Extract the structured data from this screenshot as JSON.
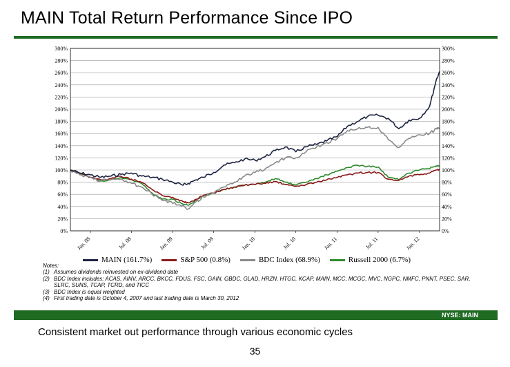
{
  "page": {
    "title": "MAIN Total Return Performance Since IPO",
    "ticker_bar": "NYSE: MAIN",
    "tagline": "Consistent market out performance through various economic cycles",
    "page_number": "35"
  },
  "notes": {
    "header": "Notes:",
    "items": [
      {
        "num": "(1)",
        "text": "Assumes dividends reinvested on ex-dividend date"
      },
      {
        "num": "(2)",
        "text": "BDC Index includes: ACAS, AINV, ARCC, BKCC, FDUS, FSC, GAIN, GBDC, GLAD, HRZN, HTGC, KCAP, MAIN, MCC, MCGC, MVC, NGPC, NMFC, PNNT, PSEC, SAR, SLRC, SUNS, TCAP, TCRD, and TICC"
      },
      {
        "num": "(3)",
        "text": "BDC Index is equal weighted"
      },
      {
        "num": "(4)",
        "text": "First trading date is October 4, 2007 and last trading date is March 30, 2012"
      }
    ]
  },
  "chart_data": {
    "type": "line",
    "title": "",
    "xlabel": "",
    "ylabel": "",
    "x_type": "date",
    "xlim": [
      "2007-10-04",
      "2012-03-30"
    ],
    "ylim": [
      0,
      300
    ],
    "y_ticks": [
      0,
      20,
      40,
      60,
      80,
      100,
      120,
      140,
      160,
      180,
      200,
      220,
      240,
      260,
      280,
      300
    ],
    "y_tick_labels": [
      "0%",
      "20%",
      "40%",
      "60%",
      "80%",
      "100%",
      "120%",
      "140%",
      "160%",
      "180%",
      "200%",
      "220%",
      "240%",
      "260%",
      "280%",
      "300%"
    ],
    "x_ticks": [
      "2008-01-01",
      "2008-07-01",
      "2009-01-01",
      "2009-07-01",
      "2010-01-01",
      "2010-07-01",
      "2011-01-01",
      "2011-07-01",
      "2012-01-01"
    ],
    "x_tick_labels": [
      "Jan. 08",
      "Jul. 08",
      "Jan. 09",
      "Jul. 09",
      "Jan. 10",
      "Jul. 10",
      "Jan. 11",
      "Jul. 11",
      "Jan. 12"
    ],
    "grid": true,
    "legend_position": "bottom",
    "x": [
      "2007-10-04",
      "2007-11-15",
      "2008-01-01",
      "2008-02-15",
      "2008-04-01",
      "2008-05-15",
      "2008-07-01",
      "2008-08-15",
      "2008-10-01",
      "2008-11-15",
      "2009-01-01",
      "2009-02-15",
      "2009-03-10",
      "2009-04-15",
      "2009-05-15",
      "2009-07-01",
      "2009-08-15",
      "2009-10-01",
      "2009-11-15",
      "2010-01-01",
      "2010-02-15",
      "2010-04-01",
      "2010-05-15",
      "2010-07-01",
      "2010-08-15",
      "2010-10-01",
      "2010-11-15",
      "2011-01-01",
      "2011-02-15",
      "2011-04-01",
      "2011-05-15",
      "2011-07-01",
      "2011-08-15",
      "2011-10-01",
      "2011-11-15",
      "2012-01-01",
      "2012-02-15",
      "2012-03-15",
      "2012-03-30"
    ],
    "series": [
      {
        "name": "MAIN (161.7%)",
        "color": "#1b2340",
        "values": [
          100,
          95,
          92,
          88,
          90,
          93,
          95,
          90,
          88,
          85,
          80,
          75,
          78,
          84,
          88,
          96,
          108,
          112,
          118,
          116,
          122,
          132,
          138,
          130,
          138,
          142,
          148,
          155,
          172,
          180,
          188,
          190,
          185,
          168,
          182,
          185,
          205,
          248,
          262
        ]
      },
      {
        "name": "S&P 500 (0.8%)",
        "color": "#8b1a1a",
        "values": [
          100,
          95,
          88,
          84,
          86,
          90,
          85,
          80,
          68,
          58,
          55,
          48,
          46,
          52,
          58,
          62,
          68,
          72,
          75,
          76,
          78,
          81,
          76,
          73,
          76,
          80,
          84,
          88,
          92,
          95,
          96,
          96,
          85,
          83,
          90,
          92,
          95,
          100,
          101
        ]
      },
      {
        "name": "BDC Index (68.9%)",
        "color": "#8a8a8a",
        "values": [
          100,
          92,
          88,
          82,
          84,
          85,
          78,
          72,
          60,
          50,
          45,
          42,
          36,
          48,
          56,
          62,
          72,
          80,
          90,
          96,
          102,
          112,
          120,
          120,
          130,
          138,
          145,
          152,
          165,
          168,
          170,
          170,
          150,
          137,
          152,
          158,
          160,
          168,
          169
        ]
      },
      {
        "name": "Russell 2000 (6.7%)",
        "color": "#2e8b2e",
        "values": [
          100,
          94,
          88,
          82,
          84,
          88,
          84,
          78,
          62,
          52,
          52,
          44,
          42,
          50,
          58,
          62,
          68,
          72,
          75,
          76,
          80,
          86,
          80,
          75,
          80,
          86,
          92,
          98,
          104,
          108,
          106,
          105,
          88,
          84,
          95,
          100,
          102,
          107,
          107
        ]
      }
    ]
  }
}
